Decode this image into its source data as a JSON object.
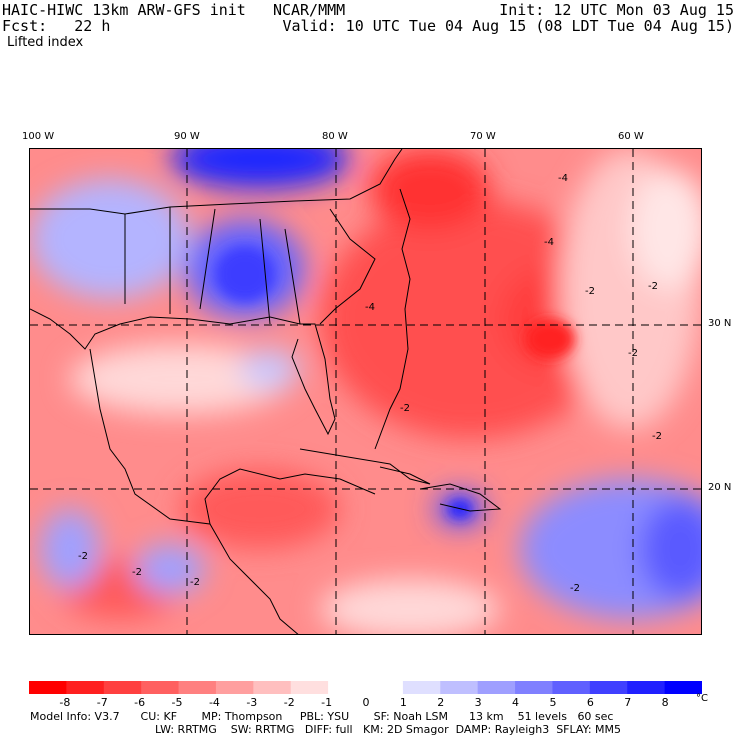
{
  "header": {
    "model_title": "HAIC-HIWC 13km ARW-GFS init",
    "org": "NCAR/MMM",
    "fcst_label": "Fcst:",
    "fcst_value": "22 h",
    "init": "Init: 12 UTC Mon 03 Aug 15",
    "valid": "Valid: 10 UTC Tue 04 Aug 15 (08 LDT Tue 04 Aug 15)"
  },
  "field_name": "Lifted index",
  "axes": {
    "lon_labels": [
      "100 W",
      "90 W",
      "80 W",
      "70 W",
      "60 W"
    ],
    "lat_labels": [
      "30 N",
      "20 N"
    ]
  },
  "colorbar": {
    "labels": [
      "-8",
      "-7",
      "-6",
      "-5",
      "-4",
      "-3",
      "-2",
      "-1",
      "0",
      "1",
      "2",
      "3",
      "4",
      "5",
      "6",
      "7",
      "8"
    ],
    "unit": "°C",
    "negative_color": "#ff0000",
    "positive_color": "#0000ff"
  },
  "contour_labels": [
    "-4",
    "-4",
    "-2",
    "-2",
    "-2",
    "-2",
    "-4",
    "-2",
    "-2",
    "-2",
    "-2",
    "-2"
  ],
  "model_info": {
    "line1": "Model Info: V3.7      CU: KF       MP: Thompson     PBL: YSU       SF: Noah LSM      13 km    51 levels   60 sec",
    "line2": "LW: RRTMG    SW: RRTMG   DIFF: full   KM: 2D Smagor  DAMP: Rayleigh3  SFLAY: MM5"
  }
}
